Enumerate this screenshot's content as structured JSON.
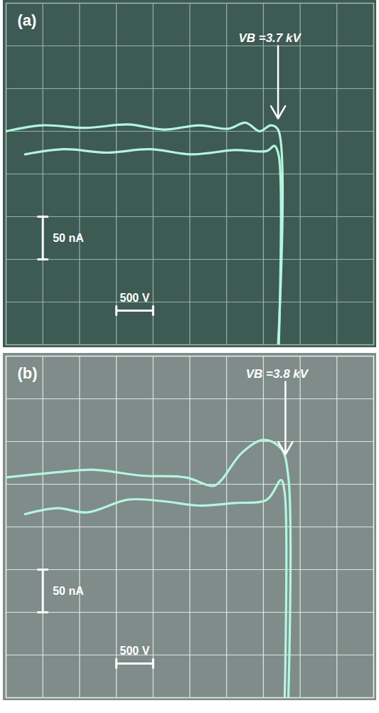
{
  "chart_data": [
    {
      "type": "line",
      "title": "(a)",
      "xlim": [
        0,
        5000
      ],
      "xticks": [
        0,
        500,
        1000,
        1500,
        2000,
        2500,
        3000,
        3500,
        4000,
        4500,
        5000
      ],
      "ylim": [
        -250,
        150
      ],
      "yticks": [
        -250,
        -200,
        -150,
        -100,
        -50,
        0,
        50,
        100,
        150
      ],
      "grid": true,
      "tick_labels": false,
      "series": [
        {
          "color": "#b4f5df",
          "x": [
            0,
            500,
            1080,
            1660,
            2150,
            2630,
            3020,
            3260,
            3450,
            3600,
            3700,
            3700
          ],
          "values": [
            0,
            7,
            4,
            8,
            2,
            7,
            3,
            10,
            0,
            7,
            2,
            -250
          ]
        },
        {
          "color": "#b4f5df",
          "x": [
            260,
            790,
            1370,
            1950,
            2530,
            3110,
            3550,
            3650,
            3710,
            3710
          ],
          "values": [
            -27,
            -21,
            -25,
            -21,
            -27,
            -22,
            -23,
            -17,
            -29,
            -250
          ]
        }
      ],
      "annotations": [
        {
          "text": "VB =3.7 kV",
          "x": 3700,
          "y": 0
        }
      ],
      "scale_bars": [
        {
          "label": "50 nA",
          "value": 50,
          "axis": "y"
        },
        {
          "label": "500 V",
          "value": 500,
          "axis": "x"
        }
      ]
    },
    {
      "type": "line",
      "title": "(b)",
      "xlim": [
        0,
        5000
      ],
      "xticks": [
        0,
        500,
        1000,
        1500,
        2000,
        2500,
        3000,
        3500,
        4000,
        4500,
        5000
      ],
      "ylim": [
        -250,
        150
      ],
      "yticks": [
        -250,
        -200,
        -150,
        -100,
        -50,
        0,
        50,
        100,
        150
      ],
      "grid": true,
      "tick_labels": false,
      "series": [
        {
          "color": "#b4f5df",
          "x": [
            0,
            700,
            1180,
            1850,
            2440,
            2820,
            2920,
            3210,
            3500,
            3740,
            3840,
            3840
          ],
          "values": [
            8,
            14,
            17,
            10,
            8,
            -2,
            4,
            37,
            52,
            42,
            8,
            -250
          ]
        },
        {
          "color": "#b4f5df",
          "x": [
            260,
            700,
            1100,
            1660,
            2150,
            2630,
            3110,
            3550,
            3740,
            3790,
            3790
          ],
          "values": [
            -35,
            -28,
            -33,
            -18,
            -20,
            -25,
            -22,
            -18,
            5,
            -10,
            -250
          ]
        }
      ],
      "annotations": [
        {
          "text": "VB =3.8 kV",
          "x": 3800,
          "y": 20
        }
      ],
      "scale_bars": [
        {
          "label": "50 nA",
          "value": 50,
          "axis": "y"
        },
        {
          "label": "500 V",
          "value": 500,
          "axis": "x"
        }
      ]
    }
  ]
}
